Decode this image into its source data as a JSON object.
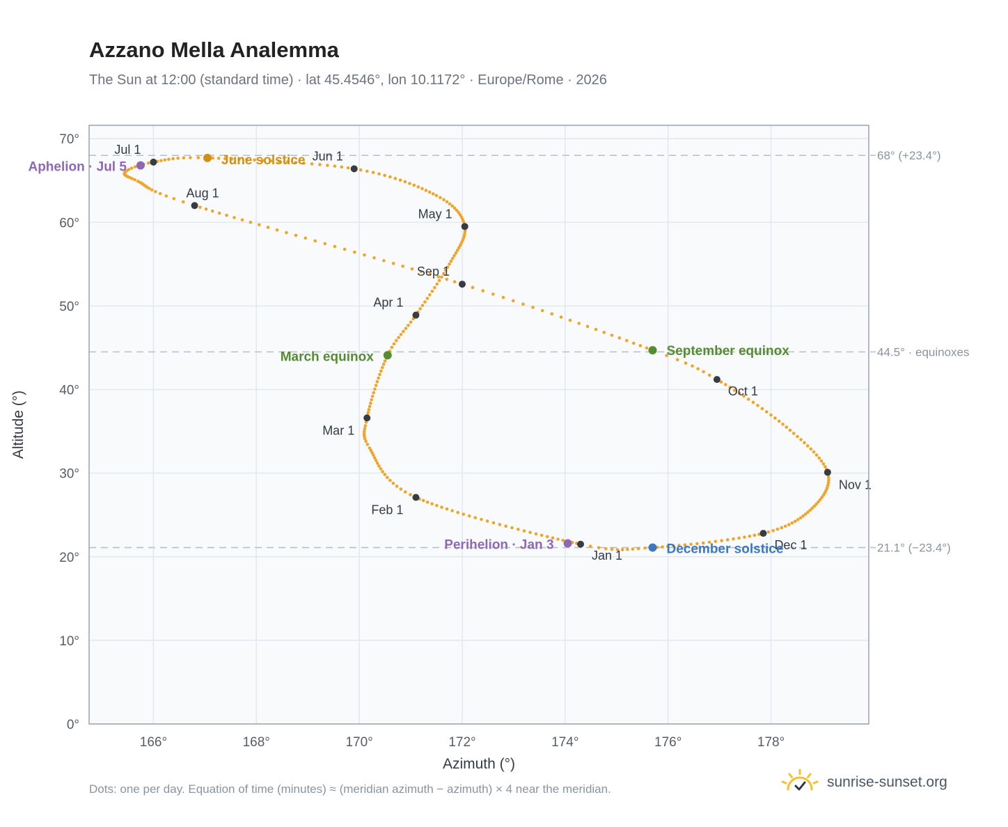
{
  "title": "Azzano Mella Analemma",
  "subtitle": "The Sun at 12:00 (standard time) · lat 45.4546°, lon 10.1172° · Europe/Rome · 2026",
  "footnote": "Dots: one per day. Equation of time (minutes) ≈ (meridian azimuth − azimuth) × 4 near the meridian.",
  "brand": {
    "text": "sunrise-sunset.org",
    "icon": "sun-logo-icon",
    "color": "#f5c02a"
  },
  "colors": {
    "curve": "#f0a52a",
    "month_marker": "#373b42",
    "aphelion": "#8f68b5",
    "solstice_june": "#d58f10",
    "equinox": "#558b32",
    "solstice_december": "#3c78c0",
    "reference_line": "#b6bfca",
    "plot_bg": "#f8fafc",
    "grid": "#e2e8ef"
  },
  "chart_data": {
    "type": "scatter",
    "xlabel": "Azimuth (°)",
    "ylabel": "Altitude (°)",
    "xlim": [
      164.75,
      179.9
    ],
    "ylim": [
      0,
      71.6
    ],
    "xticks": [
      166,
      168,
      170,
      172,
      174,
      176,
      178
    ],
    "xtick_labels": [
      "166°",
      "168°",
      "170°",
      "172°",
      "174°",
      "176°",
      "178°"
    ],
    "yticks": [
      0,
      10,
      20,
      30,
      40,
      50,
      60,
      70
    ],
    "ytick_labels": [
      "0°",
      "10°",
      "20°",
      "30°",
      "40°",
      "50°",
      "60°",
      "70°"
    ],
    "grid": true,
    "reference_lines": [
      {
        "altitude": 68.0,
        "label": "68° (+23.4°)"
      },
      {
        "altitude": 44.5,
        "label": "44.5° · equinoxes"
      },
      {
        "altitude": 21.1,
        "label": "21.1° (−23.4°)"
      }
    ],
    "month_markers": [
      {
        "label": "Jan 1",
        "az": 174.3,
        "alt": 21.5
      },
      {
        "label": "Feb 1",
        "az": 171.1,
        "alt": 27.1
      },
      {
        "label": "Mar 1",
        "az": 170.15,
        "alt": 36.6
      },
      {
        "label": "Apr 1",
        "az": 171.1,
        "alt": 48.9
      },
      {
        "label": "May 1",
        "az": 172.05,
        "alt": 59.5
      },
      {
        "label": "Jun 1",
        "az": 169.9,
        "alt": 66.4
      },
      {
        "label": "Jul 1",
        "az": 166.0,
        "alt": 67.2
      },
      {
        "label": "Aug 1",
        "az": 166.8,
        "alt": 62.0
      },
      {
        "label": "Sep 1",
        "az": 172.0,
        "alt": 52.6
      },
      {
        "label": "Oct 1",
        "az": 176.95,
        "alt": 41.2
      },
      {
        "label": "Nov 1",
        "az": 179.1,
        "alt": 30.1
      },
      {
        "label": "Dec 1",
        "az": 177.85,
        "alt": 22.8
      }
    ],
    "events": [
      {
        "label": "Perihelion · Jan 3",
        "az": 174.05,
        "alt": 21.6,
        "kind": "aphelion"
      },
      {
        "label": "March equinox",
        "az": 170.55,
        "alt": 44.1,
        "kind": "equinox"
      },
      {
        "label": "June solstice",
        "az": 167.05,
        "alt": 67.7,
        "kind": "solstice_june"
      },
      {
        "label": "Aphelion · Jul 5",
        "az": 165.75,
        "alt": 66.8,
        "kind": "aphelion"
      },
      {
        "label": "September equinox",
        "az": 175.7,
        "alt": 44.7,
        "kind": "equinox"
      },
      {
        "label": "December solstice",
        "az": 175.7,
        "alt": 21.1,
        "kind": "solstice_december"
      }
    ],
    "path_keypoints": [
      {
        "day": 1,
        "az": 174.3,
        "alt": 21.5
      },
      {
        "day": 32,
        "az": 171.1,
        "alt": 27.1
      },
      {
        "day": 50,
        "az": 170.2,
        "alt": 33.0
      },
      {
        "day": 60,
        "az": 170.15,
        "alt": 36.6
      },
      {
        "day": 79,
        "az": 170.55,
        "alt": 44.1
      },
      {
        "day": 91,
        "az": 171.1,
        "alt": 48.9
      },
      {
        "day": 106,
        "az": 171.75,
        "alt": 55.0
      },
      {
        "day": 121,
        "az": 172.05,
        "alt": 59.5
      },
      {
        "day": 135,
        "az": 171.5,
        "alt": 63.2
      },
      {
        "day": 152,
        "az": 169.9,
        "alt": 66.4
      },
      {
        "day": 172,
        "az": 167.05,
        "alt": 67.7
      },
      {
        "day": 182,
        "az": 166.0,
        "alt": 67.2
      },
      {
        "day": 190,
        "az": 165.45,
        "alt": 66.0
      },
      {
        "day": 200,
        "az": 165.7,
        "alt": 64.9
      },
      {
        "day": 213,
        "az": 166.8,
        "alt": 62.0
      },
      {
        "day": 244,
        "az": 172.0,
        "alt": 52.6
      },
      {
        "day": 266,
        "az": 175.7,
        "alt": 44.7
      },
      {
        "day": 274,
        "az": 176.95,
        "alt": 41.2
      },
      {
        "day": 290,
        "az": 178.3,
        "alt": 35.5
      },
      {
        "day": 305,
        "az": 179.1,
        "alt": 30.1
      },
      {
        "day": 320,
        "az": 178.8,
        "alt": 25.8
      },
      {
        "day": 335,
        "az": 177.85,
        "alt": 22.8
      },
      {
        "day": 355,
        "az": 175.7,
        "alt": 21.1
      },
      {
        "day": 366,
        "az": 174.3,
        "alt": 21.5
      }
    ]
  }
}
